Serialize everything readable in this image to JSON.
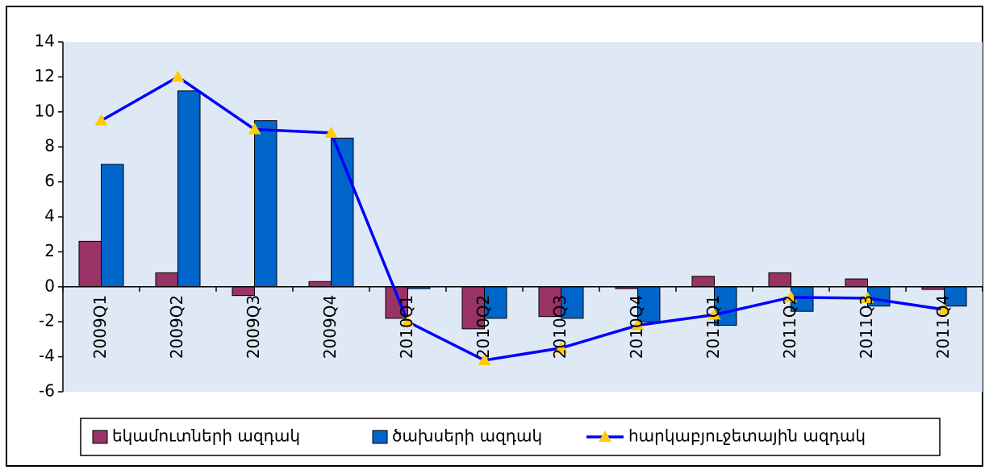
{
  "chart_data": {
    "type": "bar_line",
    "categories": [
      "2009Q1",
      "2009Q2",
      "2009Q3",
      "2009Q4",
      "2010Q1",
      "2010Q2",
      "2010Q3",
      "2010Q4",
      "2011Q1",
      "2011Q2",
      "2011Q3",
      "2011Q4"
    ],
    "series": [
      {
        "name": "եկամուտների ազդակ",
        "type": "bar",
        "color": "#993366",
        "values": [
          2.6,
          0.8,
          -0.5,
          0.3,
          -1.8,
          -2.4,
          -1.7,
          -0.1,
          0.6,
          0.8,
          0.45,
          -0.15
        ]
      },
      {
        "name": "ծախսերի ազդակ",
        "type": "bar",
        "color": "#0066cc",
        "values": [
          7.0,
          11.2,
          9.5,
          8.5,
          -0.1,
          -1.8,
          -1.8,
          -2.0,
          -2.2,
          -1.4,
          -1.1,
          -1.1
        ]
      },
      {
        "name": "հարկաբյուջետային ազդակ",
        "type": "line",
        "color": "#0000ff",
        "marker_color": "#ffcc00",
        "values": [
          9.5,
          12.0,
          9.0,
          8.8,
          -2.0,
          -4.2,
          -3.5,
          -2.2,
          -1.6,
          -0.6,
          -0.65,
          -1.3
        ]
      }
    ],
    "ylim": [
      -6,
      14
    ],
    "yticks": [
      -6,
      -4,
      -2,
      0,
      2,
      4,
      6,
      8,
      10,
      12,
      14
    ],
    "legend": "bottom"
  }
}
